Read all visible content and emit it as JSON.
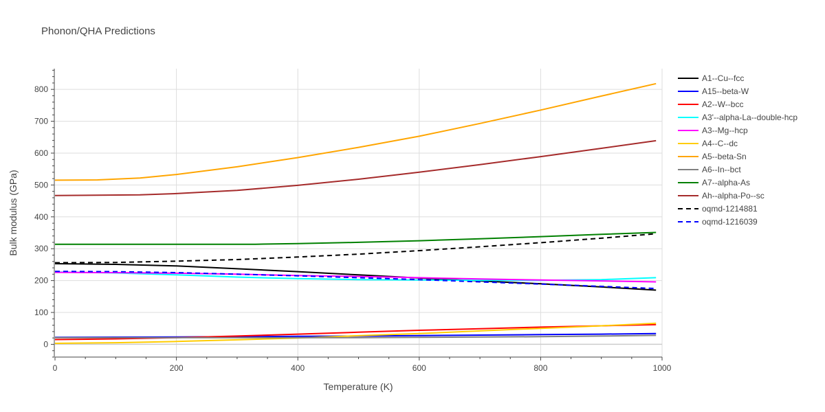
{
  "chart_data": {
    "type": "line",
    "title": "Phonon/QHA Predictions",
    "xlabel": "Temperature (K)",
    "ylabel": "Bulk modulus (GPa)",
    "xlim": [
      0,
      1000
    ],
    "ylim": [
      -40,
      865
    ],
    "xticks": [
      0,
      200,
      400,
      600,
      800,
      1000
    ],
    "yticks": [
      0,
      100,
      200,
      300,
      400,
      500,
      600,
      700,
      800
    ],
    "grid": true,
    "legend_position": "right",
    "series": [
      {
        "name": "A1--Cu--fcc",
        "color": "#000000",
        "dash": "solid",
        "x": [
          0,
          100,
          200,
          300,
          400,
          500,
          600,
          700,
          800,
          900,
          990
        ],
        "y": [
          253,
          251,
          246,
          237,
          228,
          218,
          208,
          199,
          190,
          180,
          170
        ]
      },
      {
        "name": "A15--beta-W",
        "color": "#0000ff",
        "dash": "solid",
        "x": [
          0,
          100,
          200,
          300,
          400,
          500,
          600,
          700,
          800,
          900,
          990
        ],
        "y": [
          22,
          22.5,
          23,
          24,
          25,
          26,
          27.5,
          29,
          30.5,
          32,
          34
        ]
      },
      {
        "name": "A2--W--bcc",
        "color": "#ff0000",
        "dash": "solid",
        "x": [
          0,
          100,
          200,
          300,
          400,
          500,
          600,
          700,
          800,
          900,
          990
        ],
        "y": [
          15,
          17,
          21,
          26,
          32,
          38,
          44,
          49,
          54,
          58,
          62
        ]
      },
      {
        "name": "A3'--alpha-La--double-hcp",
        "color": "#00ffff",
        "dash": "solid",
        "x": [
          0,
          100,
          200,
          300,
          400,
          500,
          600,
          700,
          800,
          900,
          990
        ],
        "y": [
          227,
          224,
          218,
          211,
          206,
          203,
          202,
          201,
          201,
          203,
          209
        ]
      },
      {
        "name": "A3--Mg--hcp",
        "color": "#ff00ff",
        "dash": "solid",
        "x": [
          0,
          100,
          200,
          300,
          400,
          500,
          600,
          700,
          800,
          900,
          990
        ],
        "y": [
          226,
          225,
          223,
          220,
          216,
          213,
          209,
          205,
          202,
          199,
          196
        ]
      },
      {
        "name": "A4--C--dc",
        "color": "#ffcc00",
        "dash": "solid",
        "x": [
          0,
          100,
          200,
          300,
          400,
          500,
          600,
          700,
          800,
          900,
          990
        ],
        "y": [
          3,
          5,
          9,
          14,
          20,
          27,
          34,
          42,
          50,
          58,
          66
        ]
      },
      {
        "name": "A5--beta-Sn",
        "color": "#ffa500",
        "dash": "solid",
        "x": [
          0,
          70,
          140,
          200,
          300,
          400,
          500,
          600,
          700,
          800,
          900,
          990
        ],
        "y": [
          515,
          516,
          522,
          533,
          557,
          586,
          618,
          653,
          693,
          735,
          779,
          818
        ]
      },
      {
        "name": "A6--In--bct",
        "color": "#808080",
        "dash": "solid",
        "x": [
          0,
          100,
          200,
          300,
          400,
          500,
          600,
          700,
          800,
          900,
          990
        ],
        "y": [
          21,
          21,
          21,
          21,
          21,
          21,
          22,
          23,
          24,
          26,
          28
        ]
      },
      {
        "name": "A7--alpha-As",
        "color": "#008000",
        "dash": "solid",
        "x": [
          0,
          100,
          200,
          300,
          330,
          400,
          500,
          600,
          700,
          800,
          900,
          990
        ],
        "y": [
          314,
          314,
          314,
          314,
          314,
          316,
          320,
          325,
          331,
          338,
          345,
          351
        ]
      },
      {
        "name": "Ah--alpha-Po--sc",
        "color": "#a52a2a",
        "dash": "solid",
        "x": [
          0,
          140,
          200,
          300,
          400,
          500,
          600,
          700,
          800,
          900,
          990
        ],
        "y": [
          467,
          469,
          473,
          483,
          499,
          518,
          540,
          564,
          589,
          615,
          639
        ]
      },
      {
        "name": "oqmd-1214881",
        "color": "#000000",
        "dash": "dash",
        "x": [
          0,
          100,
          200,
          300,
          400,
          500,
          600,
          700,
          800,
          900,
          990
        ],
        "y": [
          256,
          257,
          261,
          266,
          274,
          283,
          294,
          306,
          319,
          333,
          347
        ]
      },
      {
        "name": "oqmd-1216039",
        "color": "#0000ff",
        "dash": "dash",
        "x": [
          0,
          100,
          200,
          300,
          400,
          500,
          600,
          700,
          800,
          900,
          990
        ],
        "y": [
          229,
          228,
          225,
          220,
          215,
          209,
          203,
          196,
          189,
          182,
          175
        ]
      }
    ]
  }
}
